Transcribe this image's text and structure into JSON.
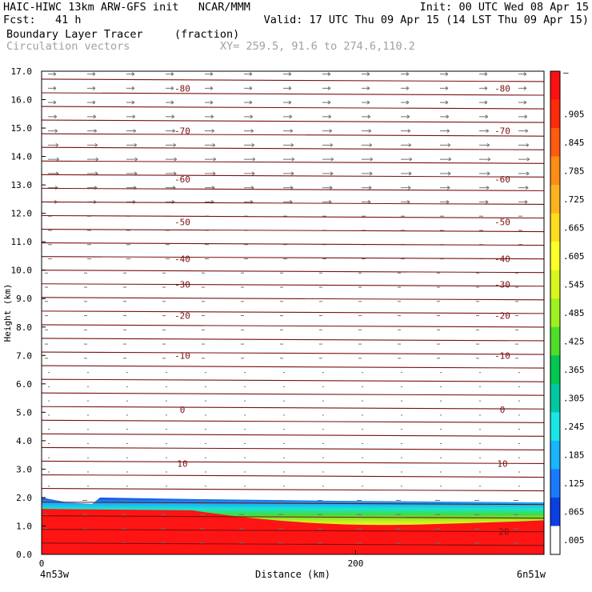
{
  "header": {
    "line1_left": "HAIC-HIWC 13km ARW-GFS init   NCAR/MMM",
    "line1_right": "Init: 00 UTC Wed 08 Apr 15",
    "line2_left": "Fcst:   41 h",
    "line2_right": "Valid: 17 UTC Thu 09 Apr 15 (14 LST Thu 09 Apr 15)",
    "line3_left": "Boundary Layer Tracer",
    "line3_units": "(fraction)",
    "line4_left": "Circulation vectors",
    "line4_xy": "XY= 259.5, 91.6 to 274.6,110.2"
  },
  "colors": {
    "contour": "#7a1010",
    "vector": "#707070",
    "frame": "#000000",
    "label_gray": "#a0a0a0"
  },
  "chart_data": {
    "type": "heatmap",
    "ylabel": "Height (km)",
    "xlabel": "Distance (km)",
    "xlim": [
      0,
      320
    ],
    "ylim": [
      0.0,
      17.0
    ],
    "y_ticks": [
      "0.0",
      "1.0",
      "2.0",
      "3.0",
      "4.0",
      "5.0",
      "6.0",
      "7.0",
      "8.0",
      "9.0",
      "10.0",
      "11.0",
      "12.0",
      "13.0",
      "14.0",
      "15.0",
      "16.0",
      "17.0"
    ],
    "x_ticks": [
      {
        "value": 0,
        "label": "0"
      },
      {
        "value": 200,
        "label": "200"
      }
    ],
    "x_end_labels": [
      "4n53w",
      "6n51w"
    ],
    "colorbar_labels": [
      "–",
      ".905",
      ".845",
      ".785",
      ".725",
      ".665",
      ".605",
      ".545",
      ".485",
      ".425",
      ".365",
      ".305",
      ".245",
      ".185",
      ".125",
      ".065",
      ".005"
    ],
    "colorbar_colors": [
      "#ffffff",
      "#0a3fe6",
      "#1a7aff",
      "#19b5ff",
      "#19e6e6",
      "#00c8a0",
      "#00c850",
      "#4ede2a",
      "#9ef01e",
      "#d8f51e",
      "#ffff28",
      "#ffdc1e",
      "#ffb41e",
      "#ff8c14",
      "#ff5a0f",
      "#ff2a0a",
      "#ff1010"
    ],
    "contours": [
      {
        "label": "-80",
        "height_km": 16.4
      },
      {
        "label": "-70",
        "height_km": 14.9
      },
      {
        "label": "-60",
        "height_km": 13.2
      },
      {
        "label": "-50",
        "height_km": 11.7
      },
      {
        "label": "-40",
        "height_km": 10.4
      },
      {
        "label": "-30",
        "height_km": 9.5
      },
      {
        "label": "-20",
        "height_km": 8.4
      },
      {
        "label": "-10",
        "height_km": 7.0
      },
      {
        "label": "0",
        "height_km": 5.1
      },
      {
        "label": "10",
        "height_km": 3.2
      },
      {
        "label": "20",
        "height_km": 0.8
      }
    ],
    "boundary_layer_top_km": 2.0
  }
}
